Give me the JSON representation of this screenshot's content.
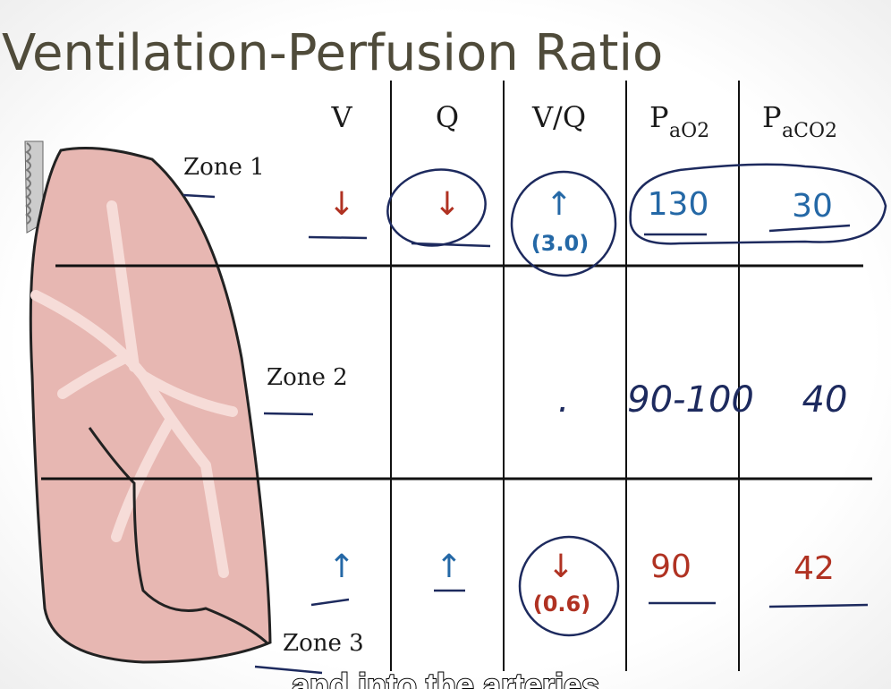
{
  "title": "Ventilation-Perfusion Ratio",
  "table": {
    "headers": [
      {
        "text": "V"
      },
      {
        "text": "Q"
      },
      {
        "text": "V/Q"
      },
      {
        "text": "P",
        "subscript": "aO2"
      },
      {
        "text": "P",
        "subscript": "aCO2"
      }
    ],
    "rows": [
      {
        "label": "Zone 1",
        "cells": [
          "↓",
          "↓",
          "↑",
          "130",
          "30"
        ],
        "ratio": "(3.0)"
      },
      {
        "label": "Zone 2",
        "cells": [
          null,
          null,
          ".",
          "90-100",
          "40"
        ]
      },
      {
        "label": "Zone 3",
        "cells": [
          "↑",
          "↑",
          "↓",
          "90",
          "42"
        ],
        "ratio": "(0.6)"
      }
    ]
  },
  "caption": "and into the arteries"
}
